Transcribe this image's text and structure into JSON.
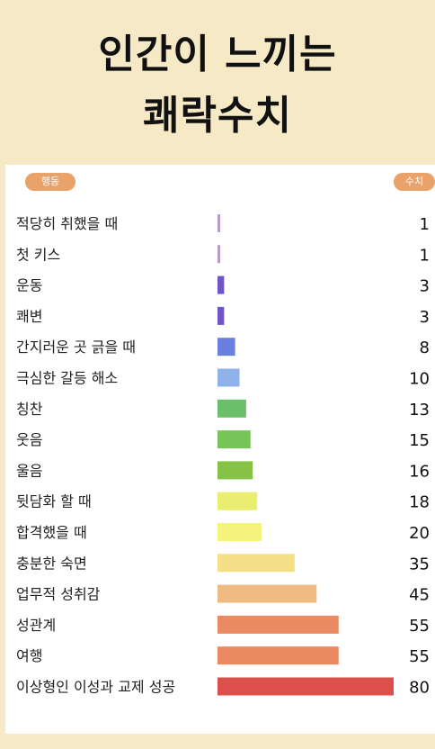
{
  "title_line1": "인간이 느끼는",
  "title_line2": "쾌락수치",
  "header_left": "행동",
  "header_right": "수치",
  "chart_data": {
    "type": "bar",
    "orientation": "horizontal",
    "categories": [
      "적당히 취했을 때",
      "첫 키스",
      "운동",
      "쾌변",
      "간지러운 곳 긁을 때",
      "극심한 갈등 해소",
      "칭찬",
      "웃음",
      "울음",
      "뒷담화 할 때",
      "합격했을 때",
      "충분한 숙면",
      "업무적 성취감",
      "성관계",
      "여행",
      "이상형인 이성과 교제 성공"
    ],
    "values": [
      1,
      1,
      3,
      3,
      8,
      10,
      13,
      15,
      16,
      18,
      20,
      35,
      45,
      55,
      55,
      80
    ],
    "colors": [
      "#b89ac9",
      "#b89ac9",
      "#6f56c4",
      "#6f56c4",
      "#6a7fe0",
      "#8fb2ea",
      "#6cbf6a",
      "#78c458",
      "#86c246",
      "#e9ee70",
      "#f4f47c",
      "#f4de86",
      "#efbb82",
      "#ea8a62",
      "#ea8a62",
      "#dc4f4a"
    ]
  }
}
